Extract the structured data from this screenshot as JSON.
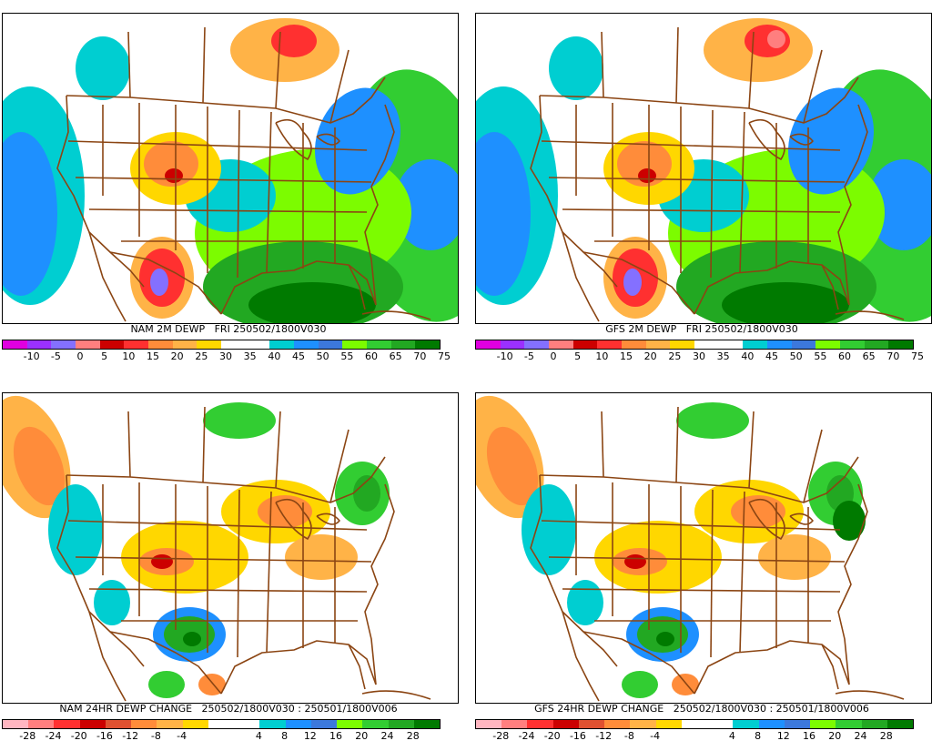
{
  "panels": [
    {
      "id": "nam-dewp",
      "caption": "NAM 2M DEWP   FRI 250502/1800V030",
      "colorbar": [
        "#e000e0",
        "#9b30ff",
        "#8470ff",
        "#ff7f7f",
        "#cc0000",
        "#ff3030",
        "#ff8c3a",
        "#ffb347",
        "#ffd700",
        "#ffffff",
        "#ffffff",
        "#00ced1",
        "#1e90ff",
        "#3c78dc",
        "#7cfc00",
        "#32cd32",
        "#22a822",
        "#007a00"
      ],
      "ticks": [
        "-10",
        "-5",
        "0",
        "5",
        "10",
        "15",
        "20",
        "25",
        "30",
        "35",
        "40",
        "45",
        "50",
        "55",
        "60",
        "65",
        "70",
        "75"
      ],
      "kind": "dewp",
      "variant": "nam"
    },
    {
      "id": "gfs-dewp",
      "caption": "GFS 2M DEWP   FRI 250502/1800V030",
      "colorbar": [
        "#e000e0",
        "#9b30ff",
        "#8470ff",
        "#ff7f7f",
        "#cc0000",
        "#ff3030",
        "#ff8c3a",
        "#ffb347",
        "#ffd700",
        "#ffffff",
        "#ffffff",
        "#00ced1",
        "#1e90ff",
        "#3c78dc",
        "#7cfc00",
        "#32cd32",
        "#22a822",
        "#007a00"
      ],
      "ticks": [
        "-10",
        "-5",
        "0",
        "5",
        "10",
        "15",
        "20",
        "25",
        "30",
        "35",
        "40",
        "45",
        "50",
        "55",
        "60",
        "65",
        "70",
        "75"
      ],
      "kind": "dewp",
      "variant": "gfs"
    },
    {
      "id": "nam-change",
      "caption": "NAM 24HR DEWP CHANGE   250502/1800V030 : 250501/1800V006",
      "colorbar": [
        "#ffb6c1",
        "#ff7f7f",
        "#ff3030",
        "#cc0000",
        "#e05030",
        "#ff8c3a",
        "#ffb347",
        "#ffd700",
        "#ffffff",
        "#ffffff",
        "#00ced1",
        "#1e90ff",
        "#3c78dc",
        "#7cfc00",
        "#32cd32",
        "#22a822",
        "#007a00"
      ],
      "ticks": [
        "-28",
        "-24",
        "-20",
        "-16",
        "-12",
        "-8",
        "-4",
        "4",
        "8",
        "12",
        "16",
        "20",
        "24",
        "28"
      ],
      "kind": "change",
      "variant": "nam"
    },
    {
      "id": "gfs-change",
      "caption": "GFS 24HR DEWP CHANGE   250502/1800V030 : 250501/1800V006",
      "colorbar": [
        "#ffb6c1",
        "#ff7f7f",
        "#ff3030",
        "#cc0000",
        "#e05030",
        "#ff8c3a",
        "#ffb347",
        "#ffd700",
        "#ffffff",
        "#ffffff",
        "#00ced1",
        "#1e90ff",
        "#3c78dc",
        "#7cfc00",
        "#32cd32",
        "#22a822",
        "#007a00"
      ],
      "ticks": [
        "-28",
        "-24",
        "-20",
        "-16",
        "-12",
        "-8",
        "-4",
        "4",
        "8",
        "12",
        "16",
        "20",
        "24",
        "28"
      ],
      "kind": "change",
      "variant": "gfs"
    }
  ]
}
